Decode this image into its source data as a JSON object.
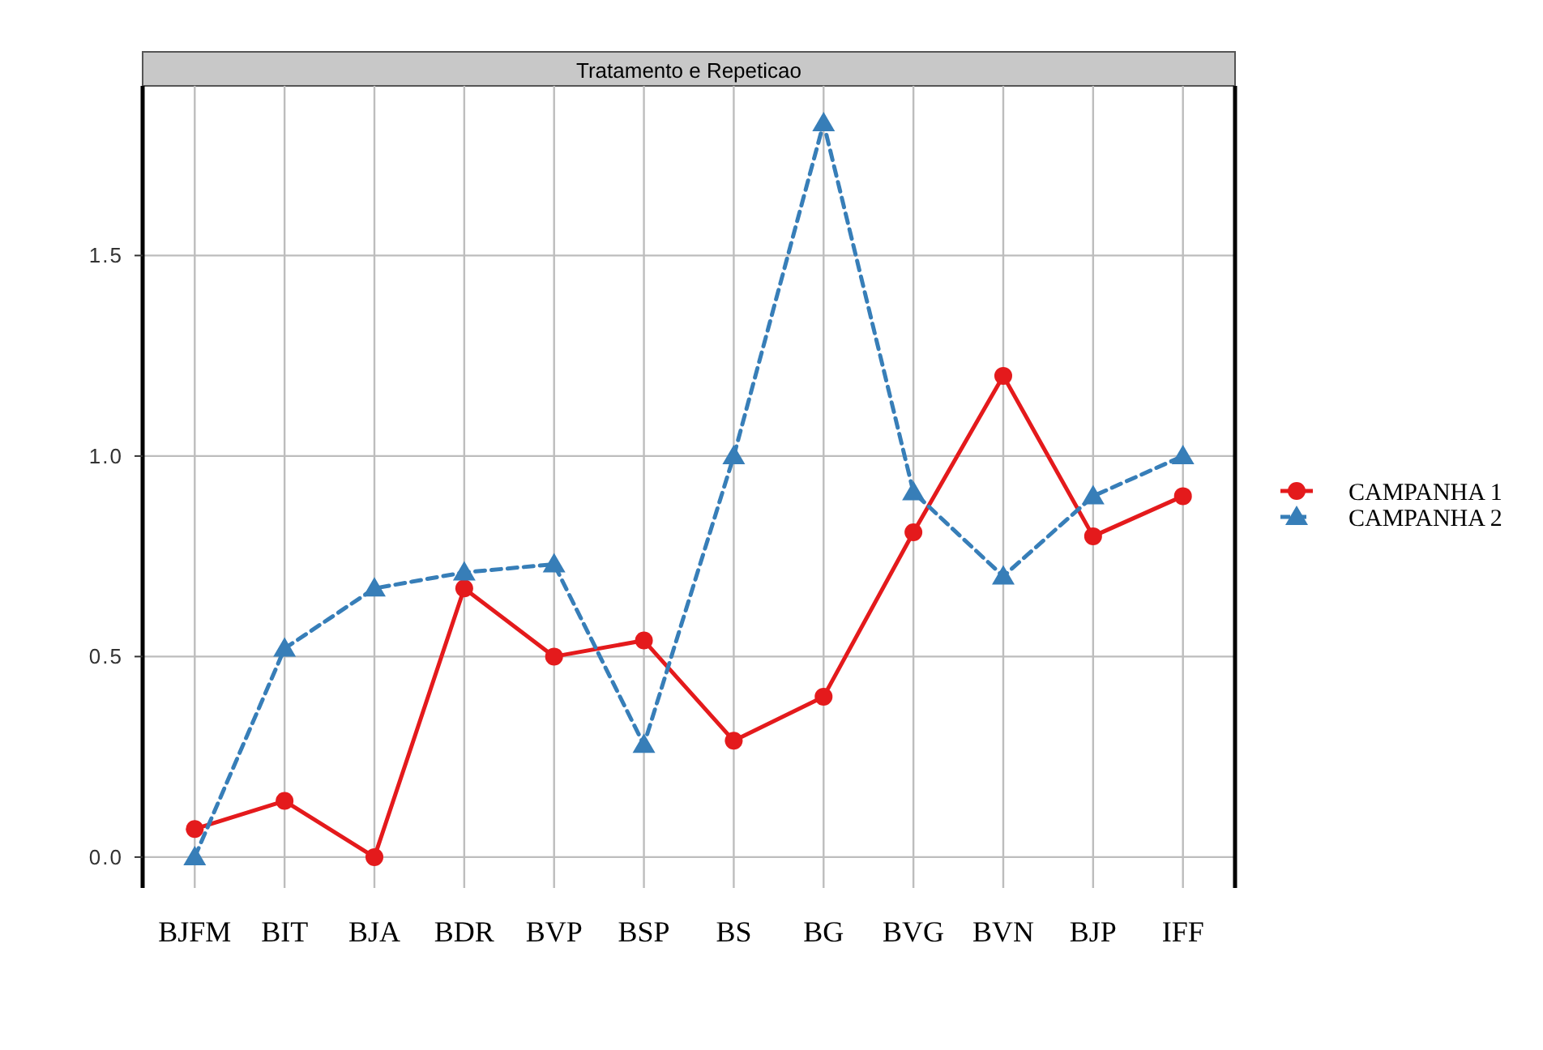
{
  "chart_data": {
    "type": "line",
    "title": "Tratamento e Repeticao",
    "categories": [
      "BJFM",
      "BIT",
      "BJA",
      "BDR",
      "BVP",
      "BSP",
      "BS",
      "BG",
      "BVG",
      "BVN",
      "BJP",
      "IFF"
    ],
    "series": [
      {
        "name": "CAMPANHA 1",
        "color": "#e41a1c",
        "marker": "circle",
        "line_style": "solid",
        "values": [
          0.07,
          0.14,
          0.0,
          0.67,
          0.5,
          0.54,
          0.29,
          0.4,
          0.81,
          1.2,
          0.8,
          0.9
        ]
      },
      {
        "name": "CAMPANHA 2",
        "color": "#377eb8",
        "marker": "triangle",
        "line_style": "dashed",
        "values": [
          0.0,
          0.52,
          0.67,
          0.71,
          0.73,
          0.28,
          1.0,
          1.83,
          0.91,
          0.7,
          0.9,
          1.0
        ]
      }
    ],
    "ylim": [
      -0.077,
      1.923
    ],
    "yticks": [
      {
        "value": 0,
        "label": "0.0"
      },
      {
        "value": 0.5,
        "label": "0.5"
      },
      {
        "value": 1,
        "label": "1.0"
      },
      {
        "value": 1.5,
        "label": "1.5"
      }
    ],
    "grid": true,
    "legend": "right"
  }
}
